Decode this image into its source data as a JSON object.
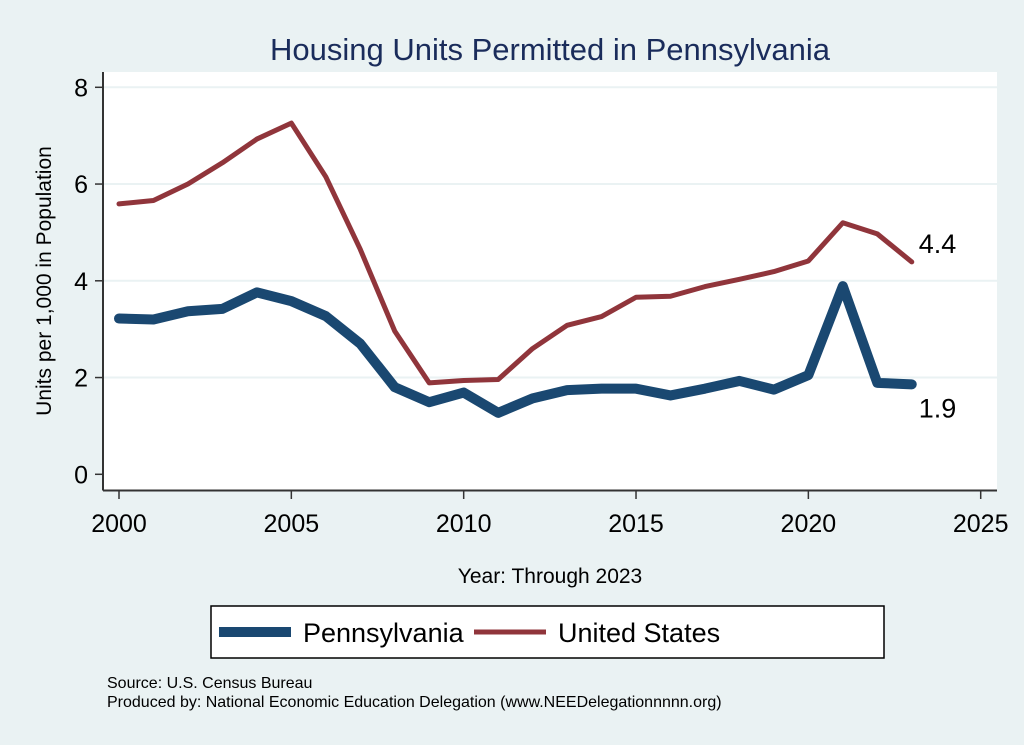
{
  "chart_data": {
    "type": "line",
    "title": "Housing Units Permitted in Pennsylvania",
    "xlabel": "Year: Through 2023",
    "ylabel": "Units per 1,000 in Population",
    "xlim": [
      2000,
      2025
    ],
    "ylim": [
      0,
      8
    ],
    "x_ticks": [
      2000,
      2005,
      2010,
      2015,
      2020,
      2025
    ],
    "y_ticks": [
      0,
      2,
      4,
      6,
      8
    ],
    "grid": "horizontal",
    "legend_position": "bottom",
    "x": [
      2000,
      2001,
      2002,
      2003,
      2004,
      2005,
      2006,
      2007,
      2008,
      2009,
      2010,
      2011,
      2012,
      2013,
      2014,
      2015,
      2016,
      2017,
      2018,
      2019,
      2020,
      2021,
      2022,
      2023
    ],
    "series": [
      {
        "name": "Pennsylvania",
        "color": "#1a4871",
        "end_label": "1.9",
        "values": [
          3.22,
          3.2,
          3.37,
          3.42,
          3.76,
          3.58,
          3.27,
          2.7,
          1.8,
          1.49,
          1.69,
          1.27,
          1.57,
          1.74,
          1.77,
          1.77,
          1.63,
          1.77,
          1.93,
          1.75,
          2.05,
          3.89,
          1.89,
          1.86
        ]
      },
      {
        "name": "United States",
        "color": "#90353b",
        "end_label": "4.4",
        "values": [
          5.59,
          5.66,
          6.0,
          6.44,
          6.93,
          7.26,
          6.15,
          4.65,
          2.96,
          1.89,
          1.94,
          1.96,
          2.6,
          3.08,
          3.26,
          3.66,
          3.68,
          3.88,
          4.03,
          4.19,
          4.41,
          5.2,
          4.97,
          4.39
        ]
      }
    ]
  },
  "footer": {
    "source": "Source: U.S. Census Bureau",
    "produced_by": "Produced by: National Economic Education Delegation (www.NEEDelegationnnnn.org)"
  }
}
